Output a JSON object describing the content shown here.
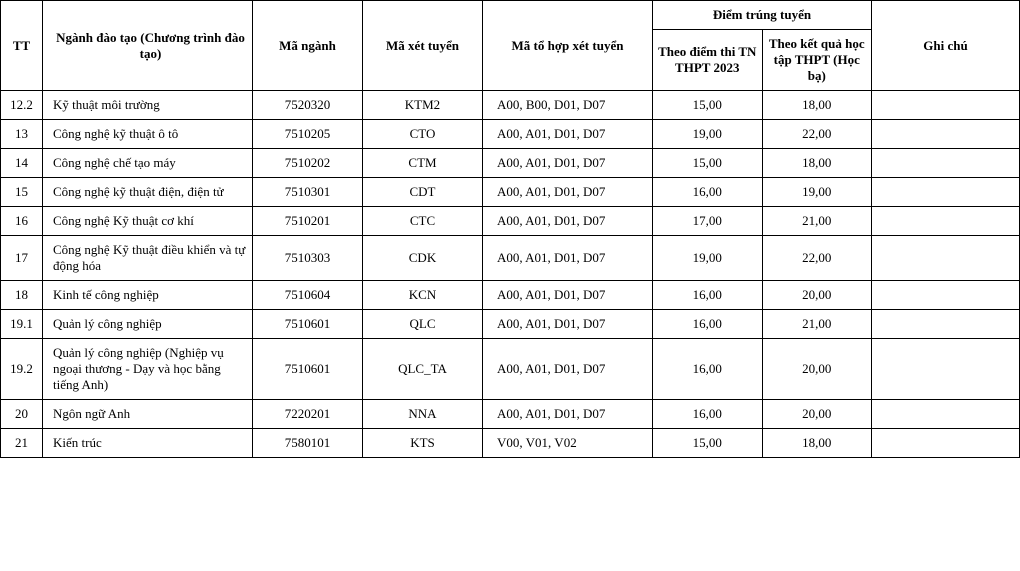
{
  "header": {
    "tt": "TT",
    "nganh": "Ngành đào tạo\n(Chương trình đào tạo)",
    "ma_nganh": "Mã ngành",
    "ma_xt": "Mã xét tuyển",
    "ma_tohop": "Mã tổ hợp xét tuyển",
    "diem_group": "Điểm trúng tuyển",
    "diem_thi": "Theo điểm thi TN THPT 2023",
    "diem_hb": "Theo kết quả học tập THPT (Học bạ)",
    "ghichu": "Ghi chú"
  },
  "rows": [
    {
      "tt": "12.2",
      "name": "Kỹ thuật môi trường",
      "code": "7520320",
      "xt": "KTM2",
      "combo": "A00, B00, D01, D07",
      "s1": "15,00",
      "s2": "18,00",
      "note": ""
    },
    {
      "tt": "13",
      "name": "Công nghệ kỹ thuật ô tô",
      "code": "7510205",
      "xt": "CTO",
      "combo": "A00, A01, D01, D07",
      "s1": "19,00",
      "s2": "22,00",
      "note": ""
    },
    {
      "tt": "14",
      "name": "Công nghệ chế tạo máy",
      "code": "7510202",
      "xt": "CTM",
      "combo": "A00, A01, D01, D07",
      "s1": "15,00",
      "s2": "18,00",
      "note": ""
    },
    {
      "tt": "15",
      "name": "Công nghệ kỹ thuật điện, điện tử",
      "code": "7510301",
      "xt": "CDT",
      "combo": "A00, A01, D01, D07",
      "s1": "16,00",
      "s2": "19,00",
      "note": ""
    },
    {
      "tt": "16",
      "name": "Công nghệ Kỹ thuật cơ khí",
      "code": "7510201",
      "xt": "CTC",
      "combo": "A00, A01, D01, D07",
      "s1": "17,00",
      "s2": "21,00",
      "note": ""
    },
    {
      "tt": "17",
      "name": "Công nghệ Kỹ thuật điều khiển và tự động hóa",
      "code": "7510303",
      "xt": "CDK",
      "combo": "A00, A01, D01, D07",
      "s1": "19,00",
      "s2": "22,00",
      "note": ""
    },
    {
      "tt": "18",
      "name": "Kinh tế công nghiệp",
      "code": "7510604",
      "xt": "KCN",
      "combo": "A00, A01, D01, D07",
      "s1": "16,00",
      "s2": "20,00",
      "note": ""
    },
    {
      "tt": "19.1",
      "name": "Quản lý công nghiệp",
      "code": "7510601",
      "xt": "QLC",
      "combo": "A00, A01, D01, D07",
      "s1": "16,00",
      "s2": "21,00",
      "note": ""
    },
    {
      "tt": "19.2",
      "name": "Quản lý công nghiệp (Nghiệp vụ ngoại thương - Dạy và học bằng tiếng Anh)",
      "code": "7510601",
      "xt": "QLC_TA",
      "combo": "A00, A01, D01, D07",
      "s1": "16,00",
      "s2": "20,00",
      "note": ""
    },
    {
      "tt": "20",
      "name": "Ngôn ngữ Anh",
      "code": "7220201",
      "xt": "NNA",
      "combo": "A00, A01, D01, D07",
      "s1": "16,00",
      "s2": "20,00",
      "note": ""
    },
    {
      "tt": "21",
      "name": "Kiến trúc",
      "code": "7580101",
      "xt": "KTS",
      "combo": "V00, V01, V02",
      "s1": "15,00",
      "s2": "18,00",
      "note": ""
    }
  ]
}
